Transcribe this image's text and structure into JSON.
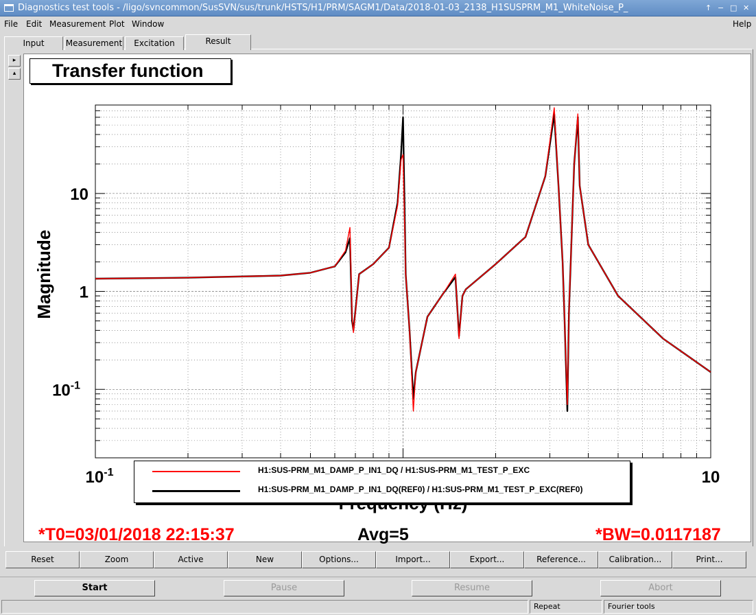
{
  "window": {
    "title": "Diagnostics test tools - /ligo/svncommon/SusSVN/sus/trunk/HSTS/H1/PRM/SAGM1/Data/2018-01-03_2138_H1SUSPRM_M1_WhiteNoise_P_",
    "controls": [
      "↑",
      "−",
      "□",
      "✕"
    ]
  },
  "menu": [
    {
      "label": "File"
    },
    {
      "label": "Edit"
    },
    {
      "label": "Measurement"
    },
    {
      "label": "Plot"
    },
    {
      "label": "Window"
    }
  ],
  "help_label": "Help",
  "tabs": [
    {
      "label": "Input"
    },
    {
      "label": "Measurement"
    },
    {
      "label": "Excitation"
    },
    {
      "label": "Result"
    }
  ],
  "active_tab": "Result",
  "side_buttons": [
    "▸",
    "▴"
  ],
  "plot": {
    "title": "Transfer function",
    "legend": [
      {
        "label": "H1:SUS-PRM_M1_DAMP_P_IN1_DQ / H1:SUS-PRM_M1_TEST_P_EXC",
        "color": "#ff0000"
      },
      {
        "label": "H1:SUS-PRM_M1_DAMP_P_IN1_DQ(REF0) / H1:SUS-PRM_M1_TEST_P_EXC(REF0)",
        "color": "#000000"
      }
    ]
  },
  "chart_data": {
    "type": "line",
    "xlabel": "Frequency (Hz)",
    "ylabel": "Magnitude",
    "xscale": "log",
    "yscale": "log",
    "xlim": [
      0.1,
      10
    ],
    "ylim": [
      0.02,
      80
    ],
    "xticks": [
      {
        "value": 0.1,
        "base": "10",
        "exp": "-1"
      },
      {
        "value": 1,
        "base": "1",
        "exp": ""
      },
      {
        "value": 10,
        "base": "10",
        "exp": ""
      }
    ],
    "yticks": [
      {
        "value": 0.1,
        "base": "10",
        "exp": "-1"
      },
      {
        "value": 1,
        "base": "1",
        "exp": ""
      },
      {
        "value": 10,
        "base": "10",
        "exp": ""
      }
    ],
    "grid": true,
    "series": [
      {
        "name": "H1:SUS-PRM_M1_DAMP_P_IN1_DQ(REF0) / H1:SUS-PRM_M1_TEST_P_EXC(REF0)",
        "color": "#000000",
        "x": [
          0.1,
          0.2,
          0.4,
          0.5,
          0.6,
          0.65,
          0.672,
          0.683,
          0.69,
          0.72,
          0.8,
          0.9,
          0.96,
          0.985,
          1.0,
          1.02,
          1.05,
          1.08,
          1.1,
          1.2,
          1.35,
          1.48,
          1.52,
          1.56,
          1.6,
          2.0,
          2.5,
          2.9,
          3.1,
          3.2,
          3.3,
          3.35,
          3.42,
          3.46,
          3.6,
          3.7,
          3.75,
          4.0,
          5.0,
          7.0,
          10.0
        ],
        "y": [
          1.35,
          1.38,
          1.45,
          1.55,
          1.8,
          2.5,
          3.5,
          0.5,
          0.4,
          1.5,
          1.9,
          2.8,
          8.0,
          25.0,
          60.0,
          1.5,
          0.4,
          0.08,
          0.15,
          0.55,
          0.95,
          1.4,
          0.35,
          0.9,
          1.05,
          1.9,
          3.6,
          15.0,
          65.0,
          12.0,
          2.0,
          0.5,
          0.06,
          0.6,
          20.0,
          60.0,
          12.0,
          3.0,
          0.9,
          0.33,
          0.15
        ]
      },
      {
        "name": "H1:SUS-PRM_M1_DAMP_P_IN1_DQ / H1:SUS-PRM_M1_TEST_P_EXC",
        "color": "#ff0000",
        "x": [
          0.1,
          0.2,
          0.4,
          0.5,
          0.6,
          0.65,
          0.672,
          0.683,
          0.69,
          0.72,
          0.8,
          0.9,
          0.96,
          0.985,
          1.0,
          1.02,
          1.05,
          1.08,
          1.1,
          1.2,
          1.35,
          1.48,
          1.52,
          1.56,
          1.6,
          2.0,
          2.5,
          2.9,
          3.1,
          3.2,
          3.3,
          3.35,
          3.42,
          3.46,
          3.6,
          3.7,
          3.75,
          4.0,
          5.0,
          7.0,
          10.0
        ],
        "y": [
          1.35,
          1.38,
          1.45,
          1.55,
          1.8,
          2.6,
          4.5,
          0.55,
          0.38,
          1.5,
          1.9,
          2.8,
          7.5,
          22.0,
          25.0,
          1.5,
          0.4,
          0.06,
          0.15,
          0.55,
          0.95,
          1.5,
          0.33,
          0.9,
          1.05,
          1.9,
          3.6,
          15.0,
          75.0,
          12.0,
          2.0,
          0.5,
          0.07,
          0.6,
          20.0,
          65.0,
          12.0,
          3.0,
          0.9,
          0.33,
          0.15
        ]
      }
    ]
  },
  "info": {
    "t0": "*T0=03/01/2018 22:15:37",
    "avg": "Avg=5",
    "bw": "*BW=0.0117187",
    "t0_color": "#ff0000",
    "bw_color": "#ff0000"
  },
  "plot_buttons": [
    {
      "label": "Reset"
    },
    {
      "label": "Zoom"
    },
    {
      "label": "Active"
    },
    {
      "label": "New"
    },
    {
      "label": "Options..."
    },
    {
      "label": "Import..."
    },
    {
      "label": "Export..."
    },
    {
      "label": "Reference..."
    },
    {
      "label": "Calibration..."
    },
    {
      "label": "Print..."
    }
  ],
  "run_buttons": [
    {
      "label": "Start",
      "enabled": true
    },
    {
      "label": "Pause",
      "enabled": false
    },
    {
      "label": "Resume",
      "enabled": false
    },
    {
      "label": "Abort",
      "enabled": false
    }
  ],
  "status": {
    "mode": "Repeat",
    "tool": "Fourier tools"
  }
}
